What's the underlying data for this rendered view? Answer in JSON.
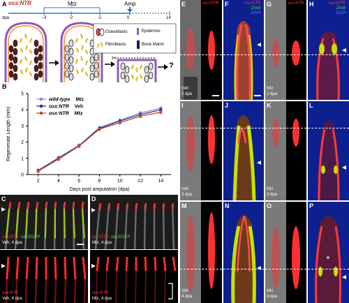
{
  "panel_labels": {
    "A": "A",
    "B": "B",
    "C": "C",
    "D": "D",
    "E": "E",
    "F": "F",
    "G": "G",
    "H": "H",
    "I": "I",
    "J": "J",
    "K": "K",
    "L": "L",
    "M": "M",
    "N": "N",
    "O": "O",
    "P": "P"
  },
  "schematic": {
    "gene": "osx:NTR",
    "dpa_label": "dpa",
    "mtz_label": "Mtz",
    "amp_label": "Amp",
    "ticks": [
      "-3",
      "-2",
      "-1",
      "0",
      "14"
    ],
    "legend": {
      "osteoblasts": "Osteoblasts",
      "fibroblasts": "Fibroblasts",
      "epidermis": "Epidermis",
      "bone_matrix": "Bone Matrix"
    },
    "question": "?"
  },
  "chart_data": {
    "type": "line",
    "xlabel": "Days post amputation (dpa)",
    "ylabel": "Regenerate Length (mm)",
    "x": [
      2,
      4,
      6,
      8,
      10,
      12,
      14
    ],
    "xlim": [
      1,
      15
    ],
    "ylim": [
      0,
      5
    ],
    "yticks": [
      0,
      1,
      2,
      3,
      4,
      5
    ],
    "series": [
      {
        "name": "wild-type  Mtz",
        "color": "#8a8fd0",
        "values": [
          0.25,
          1.05,
          1.8,
          2.9,
          3.35,
          3.8,
          4.1
        ]
      },
      {
        "name": "osx:NTR  Veh",
        "color": "#2e3a86",
        "values": [
          0.25,
          1.0,
          1.78,
          2.85,
          3.3,
          3.7,
          4.0
        ]
      },
      {
        "name": "osx:NTR  Mtz",
        "color": "#c84a2e",
        "values": [
          0.2,
          0.95,
          1.75,
          2.8,
          3.2,
          3.6,
          3.85
        ]
      }
    ]
  },
  "fin_panels": {
    "C_top_caption": "osx:NTR",
    "C_top_caption2": "osx:EGFP",
    "C_top_cond": "Veh, 4 dpa",
    "D_top_caption": "osx:NTR",
    "D_top_caption2": "osx:EGFP",
    "D_top_cond": "Mtz, 4 dpa",
    "C_bot_caption": "osx:NTR",
    "C_bot_cond": "Veh, 4 dpa",
    "D_bot_caption": "osx:NTR",
    "D_bot_cond": "Mtz, 4 dpa"
  },
  "section_panels": {
    "E_cond": "Veh",
    "E_dpa": "2 dpa",
    "E_channel": "osx:NTR",
    "F_ch1": "osx:NTR",
    "F_ch2": "Zns5",
    "F_ch3": "DAPI",
    "G_cond": "Mtz",
    "G_dpa": "2 dpa",
    "G_channel": "osx:NTR",
    "H_ch1": "osx:NTR",
    "H_ch2": "Zns5",
    "H_ch3": "DAPI",
    "I_cond": "Veh",
    "I_dpa": "3 dpa",
    "K_cond": "Mtz",
    "K_dpa": "3 dpa",
    "M_cond": "Veh",
    "M_dpa": "4 dpa",
    "O_cond": "Mtz",
    "O_dpa": "4 dpa",
    "P_mark": "*"
  }
}
